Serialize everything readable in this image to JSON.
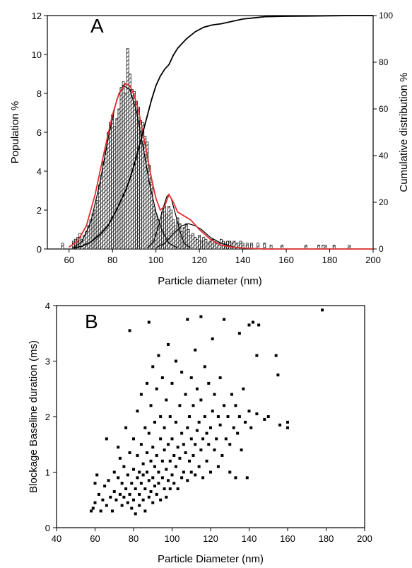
{
  "chart_data": [
    {
      "panel_label": "A",
      "type": "bar",
      "xlabel": "Particle diameter (nm)",
      "ylabel": "Population %",
      "y2label": "Cumulative distribution %",
      "xlim": [
        50,
        200
      ],
      "ylim": [
        0,
        12
      ],
      "y2lim": [
        0,
        100
      ],
      "xticks": [
        60,
        80,
        100,
        120,
        140,
        160,
        180,
        200
      ],
      "yticks": [
        0,
        2,
        4,
        6,
        8,
        10,
        12
      ],
      "y2ticks": [
        0,
        20,
        40,
        60,
        80,
        100
      ],
      "grid": false,
      "bin_width": 1,
      "histogram": {
        "x": [
          57,
          62,
          63,
          64,
          65,
          66,
          67,
          68,
          69,
          70,
          71,
          72,
          73,
          74,
          75,
          76,
          77,
          78,
          79,
          80,
          81,
          82,
          83,
          84,
          85,
          86,
          87,
          88,
          89,
          90,
          91,
          92,
          93,
          94,
          95,
          96,
          97,
          98,
          99,
          100,
          101,
          102,
          103,
          104,
          105,
          106,
          107,
          108,
          109,
          110,
          111,
          112,
          113,
          114,
          115,
          116,
          117,
          118,
          119,
          120,
          121,
          122,
          123,
          124,
          125,
          126,
          127,
          128,
          129,
          130,
          131,
          132,
          133,
          134,
          135,
          136,
          137,
          138,
          139,
          140,
          142,
          144,
          147,
          150,
          153,
          158,
          169,
          175,
          177,
          178,
          182,
          189
        ],
        "values": [
          0.3,
          0.4,
          0.5,
          0.6,
          0.8,
          0.5,
          0.7,
          0.9,
          1.2,
          1.5,
          1.8,
          2.0,
          2.5,
          3.3,
          3.8,
          4.5,
          5.2,
          6.0,
          6.5,
          6.9,
          6.3,
          6.7,
          7.2,
          8.3,
          8.6,
          8.0,
          10.3,
          9.0,
          8.2,
          8.1,
          7.6,
          7.3,
          6.6,
          6.5,
          5.8,
          5.5,
          4.3,
          3.4,
          2.2,
          1.8,
          1.5,
          1.3,
          1.9,
          2.2,
          1.8,
          2.2,
          2.0,
          1.5,
          1.2,
          1.6,
          1.3,
          0.9,
          1.1,
          1.3,
          1.0,
          0.7,
          0.8,
          0.6,
          0.5,
          0.7,
          0.4,
          0.6,
          0.5,
          0.3,
          0.4,
          0.5,
          0.3,
          0.4,
          0.3,
          0.5,
          0.4,
          0.3,
          0.4,
          0.4,
          0.3,
          0.4,
          0.3,
          0.3,
          0.4,
          0.3,
          0.3,
          0.3,
          0.3,
          0.3,
          0.2,
          0.2,
          0.2,
          0.2,
          0.2,
          0.2,
          0.2,
          0.2
        ]
      },
      "fit_total": {
        "color": "#e03030",
        "x": [
          60,
          64,
          68,
          72,
          76,
          80,
          83,
          86,
          88,
          90,
          92,
          95,
          98,
          100,
          102,
          104,
          106,
          108,
          110,
          113,
          116,
          120,
          125,
          130,
          135,
          140,
          150,
          160,
          170,
          180,
          190,
          200
        ],
        "values": [
          0.1,
          0.4,
          1.2,
          2.8,
          4.9,
          6.9,
          8.0,
          8.5,
          8.4,
          7.9,
          7.1,
          5.4,
          3.6,
          2.6,
          2.0,
          2.2,
          2.8,
          2.4,
          1.9,
          1.7,
          1.5,
          1.0,
          0.5,
          0.2,
          0.1,
          0.05,
          0,
          0,
          0,
          0,
          0,
          0
        ]
      },
      "fit_components": [
        {
          "color": "#000000",
          "x": [
            62,
            66,
            70,
            74,
            78,
            82,
            85,
            88,
            91,
            94,
            97,
            100,
            103,
            106,
            110
          ],
          "values": [
            0.05,
            0.4,
            1.4,
            3.3,
            5.7,
            7.7,
            8.4,
            8.2,
            7.1,
            5.3,
            3.4,
            1.9,
            0.9,
            0.3,
            0.05
          ]
        },
        {
          "color": "#000000",
          "x": [
            96,
            99,
            101,
            103,
            105,
            106,
            107,
            109,
            111,
            113,
            116
          ],
          "values": [
            0.05,
            0.4,
            1.1,
            2.0,
            2.7,
            2.8,
            2.6,
            1.8,
            0.9,
            0.3,
            0.05
          ]
        },
        {
          "color": "#000000",
          "x": [
            100,
            104,
            108,
            112,
            115,
            118,
            121,
            125,
            130,
            136,
            142
          ],
          "values": [
            0.05,
            0.3,
            0.8,
            1.2,
            1.3,
            1.2,
            1.0,
            0.6,
            0.3,
            0.1,
            0.02
          ]
        }
      ],
      "cumulative": {
        "color": "#000000",
        "x": [
          62,
          66,
          70,
          74,
          78,
          82,
          86,
          88,
          90,
          92,
          94,
          96,
          98,
          100,
          102,
          104,
          106,
          108,
          110,
          114,
          118,
          122,
          126,
          130,
          135,
          140,
          145,
          150,
          160,
          170,
          180,
          190,
          200
        ],
        "values": [
          0.3,
          1.2,
          3,
          6,
          10,
          17,
          25,
          30,
          36,
          43,
          50,
          57,
          64,
          70,
          74,
          77,
          79,
          83,
          86,
          90,
          93,
          95,
          96,
          96.5,
          97.5,
          98.5,
          99,
          99.5,
          99.7,
          99.8,
          99.9,
          100,
          100
        ]
      }
    },
    {
      "panel_label": "B",
      "type": "scatter",
      "xlabel": "Particle Diameter (nm)",
      "ylabel": "Blockage Baseline duration (ms)",
      "xlim": [
        40,
        200
      ],
      "ylim": [
        0,
        4
      ],
      "xticks": [
        40,
        60,
        80,
        100,
        120,
        140,
        160,
        180,
        200
      ],
      "yticks": [
        0,
        1,
        2,
        3,
        4
      ],
      "grid": false,
      "points": [
        [
          58,
          0.3
        ],
        [
          59,
          0.35
        ],
        [
          60,
          0.8
        ],
        [
          60,
          0.45
        ],
        [
          61,
          0.95
        ],
        [
          62,
          0.6
        ],
        [
          63,
          0.3
        ],
        [
          64,
          0.5
        ],
        [
          65,
          0.75
        ],
        [
          66,
          0.4
        ],
        [
          66,
          1.6
        ],
        [
          67,
          0.85
        ],
        [
          68,
          0.55
        ],
        [
          69,
          0.3
        ],
        [
          70,
          0.65
        ],
        [
          70,
          1.0
        ],
        [
          71,
          0.5
        ],
        [
          72,
          0.9
        ],
        [
          72,
          1.45
        ],
        [
          73,
          0.6
        ],
        [
          73,
          1.25
        ],
        [
          74,
          0.4
        ],
        [
          74,
          0.8
        ],
        [
          75,
          1.1
        ],
        [
          75,
          0.55
        ],
        [
          76,
          0.7
        ],
        [
          76,
          1.8
        ],
        [
          77,
          0.45
        ],
        [
          77,
          0.95
        ],
        [
          78,
          0.6
        ],
        [
          78,
          1.35
        ],
        [
          78,
          3.55
        ],
        [
          79,
          0.8
        ],
        [
          79,
          0.35
        ],
        [
          80,
          1.05
        ],
        [
          80,
          0.5
        ],
        [
          80,
          1.6
        ],
        [
          81,
          0.7
        ],
        [
          81,
          0.25
        ],
        [
          82,
          0.9
        ],
        [
          82,
          1.3
        ],
        [
          82,
          2.1
        ],
        [
          83,
          0.6
        ],
        [
          83,
          1.0
        ],
        [
          83,
          0.4
        ],
        [
          84,
          0.8
        ],
        [
          84,
          1.5
        ],
        [
          84,
          2.4
        ],
        [
          85,
          0.5
        ],
        [
          85,
          1.15
        ],
        [
          85,
          0.95
        ],
        [
          86,
          0.7
        ],
        [
          86,
          1.8
        ],
        [
          86,
          0.3
        ],
        [
          87,
          1.0
        ],
        [
          87,
          1.35
        ],
        [
          87,
          2.6
        ],
        [
          88,
          0.55
        ],
        [
          88,
          0.85
        ],
        [
          88,
          1.7
        ],
        [
          88,
          3.7
        ],
        [
          89,
          1.2
        ],
        [
          89,
          0.65
        ],
        [
          89,
          2.2
        ],
        [
          90,
          0.9
        ],
        [
          90,
          1.45
        ],
        [
          90,
          0.45
        ],
        [
          90,
          2.9
        ],
        [
          91,
          0.75
        ],
        [
          91,
          1.1
        ],
        [
          91,
          1.9
        ],
        [
          92,
          0.6
        ],
        [
          92,
          1.3
        ],
        [
          92,
          2.5
        ],
        [
          93,
          1.0
        ],
        [
          93,
          0.8
        ],
        [
          93,
          3.1
        ],
        [
          94,
          0.5
        ],
        [
          94,
          1.6
        ],
        [
          94,
          2.0
        ],
        [
          95,
          0.9
        ],
        [
          95,
          1.2
        ],
        [
          95,
          2.7
        ],
        [
          96,
          0.7
        ],
        [
          96,
          1.4
        ],
        [
          96,
          1.8
        ],
        [
          97,
          1.05
        ],
        [
          97,
          0.55
        ],
        [
          97,
          2.3
        ],
        [
          98,
          0.85
        ],
        [
          98,
          1.5
        ],
        [
          98,
          3.3
        ],
        [
          99,
          1.2
        ],
        [
          99,
          0.7
        ],
        [
          99,
          2.0
        ],
        [
          100,
          0.95
        ],
        [
          100,
          1.6
        ],
        [
          100,
          2.6
        ],
        [
          101,
          0.8
        ],
        [
          101,
          1.3
        ],
        [
          102,
          1.1
        ],
        [
          102,
          1.9
        ],
        [
          102,
          3.0
        ],
        [
          103,
          0.7
        ],
        [
          103,
          1.45
        ],
        [
          104,
          1.25
        ],
        [
          104,
          2.2
        ],
        [
          105,
          0.9
        ],
        [
          105,
          1.7
        ],
        [
          105,
          2.8
        ],
        [
          106,
          1.0
        ],
        [
          106,
          1.5
        ],
        [
          107,
          1.35
        ],
        [
          107,
          2.4
        ],
        [
          108,
          0.85
        ],
        [
          108,
          1.8
        ],
        [
          108,
          3.75
        ],
        [
          109,
          1.2
        ],
        [
          109,
          2.0
        ],
        [
          110,
          1.6
        ],
        [
          110,
          1.0
        ],
        [
          110,
          2.7
        ],
        [
          111,
          1.3
        ],
        [
          111,
          2.2
        ],
        [
          112,
          1.5
        ],
        [
          112,
          0.95
        ],
        [
          112,
          3.2
        ],
        [
          113,
          1.75
        ],
        [
          113,
          2.5
        ],
        [
          114,
          1.1
        ],
        [
          114,
          1.9
        ],
        [
          115,
          1.4
        ],
        [
          115,
          2.3
        ],
        [
          115,
          3.8
        ],
        [
          116,
          1.6
        ],
        [
          116,
          0.9
        ],
        [
          117,
          2.0
        ],
        [
          117,
          2.9
        ],
        [
          118,
          1.2
        ],
        [
          118,
          1.7
        ],
        [
          119,
          1.5
        ],
        [
          119,
          2.6
        ],
        [
          120,
          1.8
        ],
        [
          120,
          1.0
        ],
        [
          121,
          2.1
        ],
        [
          121,
          3.4
        ],
        [
          122,
          1.4
        ],
        [
          122,
          2.4
        ],
        [
          123,
          1.6
        ],
        [
          124,
          2.0
        ],
        [
          124,
          1.1
        ],
        [
          125,
          1.85
        ],
        [
          125,
          2.7
        ],
        [
          126,
          1.3
        ],
        [
          127,
          2.2
        ],
        [
          127,
          3.75
        ],
        [
          128,
          1.6
        ],
        [
          129,
          2.0
        ],
        [
          130,
          1.5
        ],
        [
          130,
          1.0
        ],
        [
          131,
          2.4
        ],
        [
          132,
          1.8
        ],
        [
          133,
          0.9
        ],
        [
          133,
          2.2
        ],
        [
          134,
          1.7
        ],
        [
          135,
          2.0
        ],
        [
          135,
          3.5
        ],
        [
          136,
          1.4
        ],
        [
          137,
          2.5
        ],
        [
          138,
          1.9
        ],
        [
          139,
          0.9
        ],
        [
          140,
          2.1
        ],
        [
          140,
          3.65
        ],
        [
          141,
          1.8
        ],
        [
          142,
          3.7
        ],
        [
          144,
          2.05
        ],
        [
          144,
          3.1
        ],
        [
          145,
          3.65
        ],
        [
          148,
          1.95
        ],
        [
          150,
          2.0
        ],
        [
          154,
          3.1
        ],
        [
          155,
          2.75
        ],
        [
          156,
          1.85
        ],
        [
          160,
          1.9
        ],
        [
          160,
          1.8
        ],
        [
          178,
          3.92
        ]
      ]
    }
  ]
}
